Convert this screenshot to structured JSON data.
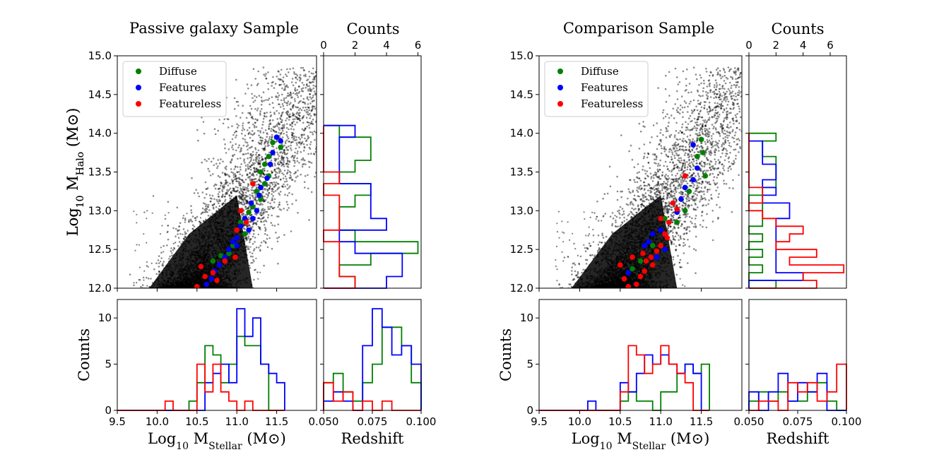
{
  "colors": {
    "diffuse": "#008000",
    "features": "#0000ff",
    "featureless": "#ff0000",
    "background": "#000000"
  },
  "chart_data": [
    {
      "type": "scatter+histograms",
      "title": "Passive galaxy Sample",
      "legend": {
        "placement": "top-left",
        "entries": [
          "Diffuse",
          "Features",
          "Featureless"
        ]
      },
      "scatter": {
        "xlabel": "Log10 MStellar (M⊙)",
        "ylabel": "Log10 MHalo (M⊙)",
        "xlim": [
          9.5,
          12.0
        ],
        "ylim": [
          12.0,
          15.0
        ],
        "xticks": [
          "9.5",
          "10.0",
          "10.5",
          "11.0",
          "11.5"
        ],
        "yticks": [
          "12.0",
          "12.5",
          "13.0",
          "13.5",
          "14.0",
          "14.5",
          "15.0"
        ],
        "relation": {
          "center_x_at_halo_min": 10.45,
          "slope_dx_per_dy": 0.55,
          "scatter_dx": 0.22
        },
        "series": [
          {
            "name": "Diffuse",
            "points": [
              [
                11.45,
                13.88
              ],
              [
                11.55,
                13.82
              ],
              [
                11.4,
                13.7
              ],
              [
                11.35,
                13.6
              ],
              [
                11.3,
                13.5
              ],
              [
                11.35,
                13.35
              ],
              [
                11.25,
                13.25
              ],
              [
                11.2,
                13.05
              ],
              [
                11.15,
                12.98
              ],
              [
                11.05,
                12.85
              ],
              [
                11.1,
                12.7
              ],
              [
                10.95,
                12.55
              ],
              [
                10.9,
                12.45
              ],
              [
                10.8,
                12.42
              ],
              [
                10.7,
                12.35
              ],
              [
                11.4,
                13.45
              ],
              [
                11.3,
                13.15
              ]
            ]
          },
          {
            "name": "Features",
            "points": [
              [
                11.5,
                13.95
              ],
              [
                11.55,
                13.9
              ],
              [
                11.45,
                13.75
              ],
              [
                11.42,
                13.6
              ],
              [
                11.38,
                13.42
              ],
              [
                11.3,
                13.3
              ],
              [
                11.28,
                13.2
              ],
              [
                11.18,
                13.1
              ],
              [
                11.25,
                13.0
              ],
              [
                11.1,
                12.9
              ],
              [
                11.05,
                12.8
              ],
              [
                11.0,
                12.65
              ],
              [
                10.95,
                12.6
              ],
              [
                10.9,
                12.5
              ],
              [
                10.85,
                12.4
              ],
              [
                10.78,
                12.3
              ],
              [
                10.72,
                12.22
              ],
              [
                10.68,
                12.12
              ],
              [
                10.62,
                12.05
              ],
              [
                11.2,
                12.9
              ],
              [
                11.0,
                12.55
              ],
              [
                11.15,
                12.75
              ]
            ]
          },
          {
            "name": "Featureless",
            "points": [
              [
                11.2,
                13.35
              ],
              [
                11.05,
                13.0
              ],
              [
                11.0,
                12.75
              ],
              [
                10.98,
                12.4
              ],
              [
                10.85,
                12.35
              ],
              [
                10.7,
                12.2
              ],
              [
                10.6,
                12.15
              ],
              [
                10.55,
                12.28
              ],
              [
                10.5,
                12.02
              ],
              [
                11.12,
                12.85
              ],
              [
                10.75,
                12.1
              ]
            ]
          }
        ]
      },
      "hist_halo": {
        "xlabel": "Counts",
        "xlim": [
          0,
          6.2
        ],
        "xticks": [
          "0",
          "2",
          "4",
          "6"
        ],
        "bins": [
          12.0,
          12.15,
          12.3,
          12.45,
          12.6,
          12.75,
          12.9,
          13.05,
          13.2,
          13.35,
          13.5,
          13.65,
          13.8,
          13.95,
          14.1
        ],
        "series": [
          {
            "name": "Diffuse",
            "counts": [
              2,
              1,
              3,
              6,
              2,
              1,
              1,
              2,
              3,
              1,
              2,
              3,
              3,
              1
            ]
          },
          {
            "name": "Features",
            "counts": [
              4,
              5,
              5,
              2,
              1,
              4,
              3,
              3,
              3,
              1,
              1,
              1,
              1,
              2
            ]
          },
          {
            "name": "Featureless",
            "counts": [
              2,
              1,
              1,
              1,
              0,
              1,
              1,
              1,
              0,
              1,
              0,
              0,
              0,
              0
            ]
          }
        ]
      },
      "hist_mass": {
        "ylabel": "Counts",
        "ylim": [
          0,
          12
        ],
        "yticks": [
          "0",
          "5",
          "10"
        ],
        "xlim": [
          9.5,
          12.0
        ],
        "bins": [
          9.5,
          9.6,
          9.7,
          9.8,
          9.9,
          10.0,
          10.1,
          10.2,
          10.3,
          10.4,
          10.5,
          10.6,
          10.7,
          10.8,
          10.9,
          11.0,
          11.1,
          11.2,
          11.3,
          11.4,
          11.5,
          11.6
        ],
        "series": [
          {
            "name": "Diffuse",
            "counts": [
              0,
              0,
              0,
              0,
              0,
              0,
              0,
              0,
              0,
              1,
              3,
              7,
              6,
              3,
              5,
              8,
              7,
              7,
              5,
              0,
              0
            ]
          },
          {
            "name": "Features",
            "counts": [
              0,
              0,
              0,
              0,
              0,
              0,
              0,
              0,
              0,
              0,
              0,
              3,
              4,
              5,
              3,
              11,
              8,
              10,
              5,
              4,
              3
            ]
          },
          {
            "name": "Featureless",
            "counts": [
              0,
              0,
              0,
              0,
              0,
              0,
              1,
              0,
              0,
              0,
              5,
              2,
              5,
              2,
              1,
              0,
              1,
              0,
              0,
              0,
              0
            ]
          }
        ]
      },
      "hist_z": {
        "xlabel": "Redshift",
        "xlim": [
          0.05,
          0.1
        ],
        "xticks": [
          "0.050",
          "0.075",
          "0.100"
        ],
        "ylim": [
          0,
          12
        ],
        "bins": [
          0.05,
          0.055,
          0.06,
          0.065,
          0.07,
          0.075,
          0.08,
          0.085,
          0.09,
          0.095,
          0.1
        ],
        "series": [
          {
            "name": "Diffuse",
            "counts": [
              3,
              4,
              2,
              1,
              3,
              5,
              9,
              9,
              7,
              3
            ]
          },
          {
            "name": "Features",
            "counts": [
              1,
              2,
              1,
              0,
              7,
              11,
              9,
              6,
              7,
              5
            ]
          },
          {
            "name": "Featureless",
            "counts": [
              3,
              1,
              2,
              0,
              1,
              0,
              1,
              0,
              0,
              0
            ]
          }
        ]
      }
    },
    {
      "type": "scatter+histograms",
      "title": "Comparison Sample",
      "legend": {
        "placement": "top-left",
        "entries": [
          "Diffuse",
          "Features",
          "Featureless"
        ]
      },
      "scatter": {
        "xlabel": "Log10 MStellar (M⊙)",
        "ylabel": "Log10 MHalo (M⊙)",
        "xlim": [
          9.5,
          12.0
        ],
        "ylim": [
          12.0,
          15.0
        ],
        "xticks": [
          "9.5",
          "10.0",
          "10.5",
          "11.0",
          "11.5"
        ],
        "yticks": [
          "12.0",
          "12.5",
          "13.0",
          "13.5",
          "14.0",
          "14.5",
          "15.0"
        ],
        "relation": {
          "center_x_at_halo_min": 10.45,
          "slope_dx_per_dy": 0.55,
          "scatter_dx": 0.22
        },
        "series": [
          {
            "name": "Diffuse",
            "points": [
              [
                11.5,
                13.92
              ],
              [
                11.52,
                13.75
              ],
              [
                11.45,
                13.7
              ],
              [
                11.55,
                13.45
              ],
              [
                11.35,
                13.25
              ],
              [
                11.3,
                13.0
              ],
              [
                11.2,
                12.85
              ],
              [
                11.05,
                12.9
              ],
              [
                10.9,
                12.55
              ],
              [
                10.75,
                12.35
              ],
              [
                10.65,
                12.25
              ]
            ]
          },
          {
            "name": "Features",
            "points": [
              [
                11.4,
                13.85
              ],
              [
                11.45,
                13.55
              ],
              [
                11.4,
                13.4
              ],
              [
                11.3,
                13.3
              ],
              [
                11.25,
                13.15
              ],
              [
                11.2,
                12.98
              ],
              [
                11.0,
                12.75
              ],
              [
                10.9,
                12.7
              ],
              [
                10.85,
                12.6
              ],
              [
                11.05,
                12.5
              ],
              [
                10.95,
                12.4
              ],
              [
                10.8,
                12.55
              ],
              [
                10.6,
                12.2
              ]
            ]
          },
          {
            "name": "Featureless",
            "points": [
              [
                11.3,
                13.45
              ],
              [
                11.15,
                13.1
              ],
              [
                11.2,
                13.02
              ],
              [
                11.1,
                12.85
              ],
              [
                11.05,
                12.7
              ],
              [
                11.08,
                12.65
              ],
              [
                11.0,
                12.55
              ],
              [
                10.95,
                12.48
              ],
              [
                10.88,
                12.4
              ],
              [
                10.82,
                12.35
              ],
              [
                10.8,
                12.22
              ],
              [
                10.75,
                12.15
              ],
              [
                10.7,
                12.05
              ],
              [
                10.6,
                12.02
              ],
              [
                10.55,
                12.12
              ],
              [
                10.5,
                12.3
              ],
              [
                10.65,
                12.4
              ],
              [
                10.9,
                12.3
              ],
              [
                10.78,
                12.45
              ],
              [
                11.0,
                12.9
              ]
            ]
          }
        ]
      },
      "hist_halo": {
        "xlabel": "Counts",
        "xlim": [
          0,
          7.2
        ],
        "xticks": [
          "0",
          "2",
          "4",
          "6"
        ],
        "bins": [
          12.0,
          12.1,
          12.2,
          12.3,
          12.4,
          12.5,
          12.6,
          12.7,
          12.8,
          12.9,
          13.0,
          13.1,
          13.2,
          13.3,
          13.4,
          13.5,
          13.6,
          13.7,
          13.8,
          13.9,
          14.0
        ],
        "series": [
          {
            "name": "Diffuse",
            "counts": [
              2,
              0,
              1,
              0,
              1,
              0,
              1,
              0,
              1,
              1,
              1,
              0,
              1,
              2,
              2,
              2,
              2,
              1,
              1,
              2
            ]
          },
          {
            "name": "Features",
            "counts": [
              0,
              4,
              2,
              2,
              2,
              2,
              2,
              2,
              2,
              3,
              3,
              1,
              2,
              1,
              2,
              2,
              1,
              1,
              1,
              0
            ]
          },
          {
            "name": "Featureless",
            "counts": [
              5,
              4,
              7,
              3,
              5,
              2,
              3,
              4,
              2,
              1,
              0,
              1,
              1,
              0,
              0,
              0,
              0,
              0,
              0,
              0
            ]
          }
        ]
      },
      "hist_mass": {
        "ylabel": "Counts",
        "ylim": [
          0,
          12
        ],
        "yticks": [
          "0",
          "5",
          "10"
        ],
        "xlim": [
          9.5,
          12.0
        ],
        "bins": [
          9.5,
          9.6,
          9.7,
          9.8,
          9.9,
          10.0,
          10.1,
          10.2,
          10.3,
          10.4,
          10.5,
          10.6,
          10.7,
          10.8,
          10.9,
          11.0,
          11.1,
          11.2,
          11.3,
          11.4,
          11.5,
          11.6
        ],
        "series": [
          {
            "name": "Diffuse",
            "counts": [
              0,
              0,
              0,
              0,
              0,
              0,
              0,
              0,
              0,
              0,
              1,
              2,
              1,
              1,
              0,
              2,
              2,
              4,
              5,
              4,
              5
            ]
          },
          {
            "name": "Features",
            "counts": [
              0,
              0,
              0,
              0,
              0,
              0,
              1,
              0,
              0,
              0,
              3,
              2,
              4,
              6,
              5,
              6,
              5,
              4,
              5,
              4,
              0
            ]
          },
          {
            "name": "Featureless",
            "counts": [
              0,
              0,
              0,
              0,
              0,
              0,
              0,
              0,
              0,
              0,
              2,
              7,
              6,
              4,
              5,
              7,
              5,
              4,
              3,
              0,
              0
            ]
          }
        ]
      },
      "hist_z": {
        "xlabel": "Redshift",
        "xlim": [
          0.05,
          0.1
        ],
        "xticks": [
          "0.050",
          "0.075",
          "0.100"
        ],
        "ylim": [
          0,
          12
        ],
        "bins": [
          0.05,
          0.055,
          0.06,
          0.065,
          0.07,
          0.075,
          0.08,
          0.085,
          0.09,
          0.095,
          0.1
        ],
        "series": [
          {
            "name": "Diffuse",
            "counts": [
              1,
              2,
              1,
              2,
              1,
              1,
              2,
              3,
              1,
              0
            ]
          },
          {
            "name": "Features",
            "counts": [
              2,
              0,
              2,
              4,
              1,
              3,
              2,
              4,
              0,
              0
            ]
          },
          {
            "name": "Featureless",
            "counts": [
              0,
              1,
              1,
              0,
              3,
              2,
              3,
              1,
              2,
              5
            ]
          }
        ]
      }
    }
  ]
}
